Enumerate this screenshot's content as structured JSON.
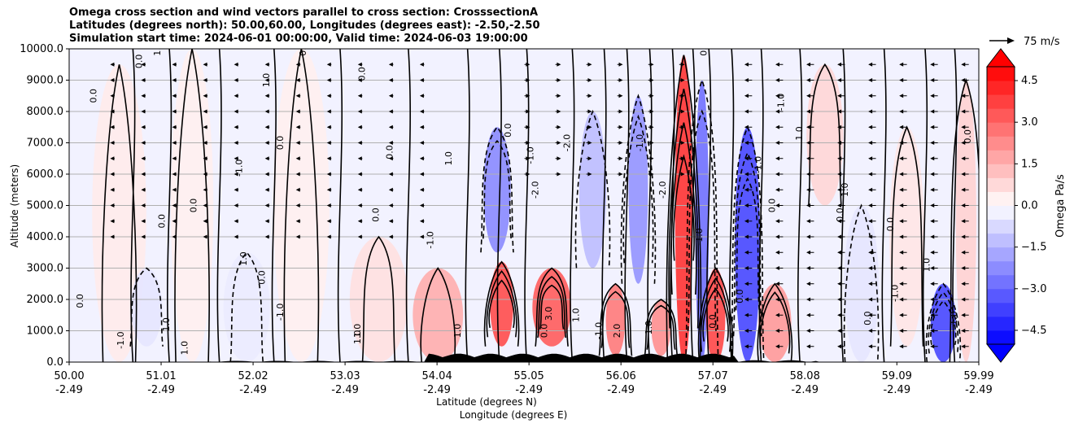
{
  "title_lines": [
    "Omega cross section and wind vectors parallel to cross section: CrosssectionA",
    "Latitudes (degrees north): 50.00,60.00, Longitudes (degrees east): -2.50,-2.50",
    "Simulation start time: 2024-06-01 00:00:00, Valid time: 2024-06-03 19:00:00"
  ],
  "chart_data": {
    "type": "heatmap",
    "title": "Omega cross section and wind vectors parallel to cross section: CrosssectionA",
    "ylabel": "Altitude (meters)",
    "xlabel_lines": [
      "Latitude (degrees N)",
      "Longitude (degrees E)"
    ],
    "ylim": [
      0,
      10000
    ],
    "xlim": [
      50.0,
      59.99
    ],
    "y_ticks": [
      0,
      1000,
      2000,
      3000,
      4000,
      5000,
      6000,
      7000,
      8000,
      9000,
      10000
    ],
    "y_tick_labels": [
      "0.0",
      "1000.0",
      "2000.0",
      "3000.0",
      "4000.0",
      "5000.0",
      "6000.0",
      "7000.0",
      "8000.0",
      "9000.0",
      "10000.0"
    ],
    "x_ticks": [
      50.0,
      51.01,
      52.02,
      53.03,
      54.04,
      55.05,
      56.06,
      57.07,
      58.08,
      59.09,
      59.99
    ],
    "x_tick_lat_labels": [
      "50.00",
      "51.01",
      "52.02",
      "53.03",
      "54.04",
      "55.05",
      "56.06",
      "57.07",
      "58.08",
      "59.09",
      "59.99"
    ],
    "x_tick_lon_labels": [
      "-2.49",
      "-2.49",
      "-2.49",
      "-2.49",
      "-2.49",
      "-2.49",
      "-2.49",
      "-2.49",
      "-2.49",
      "-2.49",
      "-2.49"
    ],
    "grid": "horizontal",
    "colorbar": {
      "label": "Omega Pa/s",
      "range": [
        -5.0,
        5.0
      ],
      "step": 0.5,
      "ticks": [
        -4.5,
        -3.0,
        -1.5,
        0.0,
        1.5,
        3.0,
        4.5
      ],
      "tick_labels": [
        "−4.5",
        "−3.0",
        "−1.5",
        "0.0",
        "1.5",
        "3.0",
        "4.5"
      ],
      "colormap": "bwr",
      "extend": "both"
    },
    "omega_cells": [
      {
        "lat": 50.55,
        "alt_min": 0,
        "alt_max": 9500,
        "omega": 0.4
      },
      {
        "lat": 50.85,
        "alt_min": 500,
        "alt_max": 3000,
        "omega": -0.5
      },
      {
        "lat": 51.35,
        "alt_min": 0,
        "alt_max": 10000,
        "omega": 0.3
      },
      {
        "lat": 51.95,
        "alt_min": 0,
        "alt_max": 3500,
        "omega": -0.4
      },
      {
        "lat": 52.55,
        "alt_min": 0,
        "alt_max": 10000,
        "omega": 0.3
      },
      {
        "lat": 53.4,
        "alt_min": 0,
        "alt_max": 4000,
        "omega": 0.6
      },
      {
        "lat": 54.05,
        "alt_min": 0,
        "alt_max": 3000,
        "omega": 1.6
      },
      {
        "lat": 54.7,
        "alt_min": 3500,
        "alt_max": 7500,
        "omega": -2.3
      },
      {
        "lat": 54.75,
        "alt_min": 500,
        "alt_max": 3200,
        "omega": 3.5
      },
      {
        "lat": 55.3,
        "alt_min": 500,
        "alt_max": 3000,
        "omega": 3.2
      },
      {
        "lat": 55.75,
        "alt_min": 3000,
        "alt_max": 8000,
        "omega": -1.3
      },
      {
        "lat": 56.0,
        "alt_min": 200,
        "alt_max": 2500,
        "omega": 2.6
      },
      {
        "lat": 56.25,
        "alt_min": 2500,
        "alt_max": 8500,
        "omega": -2.1
      },
      {
        "lat": 56.5,
        "alt_min": 200,
        "alt_max": 2000,
        "omega": 2.2
      },
      {
        "lat": 56.75,
        "alt_min": 0,
        "alt_max": 9800,
        "omega": 4.0
      },
      {
        "lat": 56.95,
        "alt_min": 0,
        "alt_max": 9000,
        "omega": -2.8
      },
      {
        "lat": 57.1,
        "alt_min": 0,
        "alt_max": 3000,
        "omega": 3.6
      },
      {
        "lat": 57.45,
        "alt_min": 0,
        "alt_max": 7500,
        "omega": -3.6
      },
      {
        "lat": 57.75,
        "alt_min": 0,
        "alt_max": 2500,
        "omega": 2.0
      },
      {
        "lat": 58.3,
        "alt_min": 5000,
        "alt_max": 9500,
        "omega": 0.8
      },
      {
        "lat": 58.7,
        "alt_min": 0,
        "alt_max": 5000,
        "omega": -0.5
      },
      {
        "lat": 59.2,
        "alt_min": 500,
        "alt_max": 7500,
        "omega": 0.5
      },
      {
        "lat": 59.6,
        "alt_min": 0,
        "alt_max": 2500,
        "omega": -3.6
      },
      {
        "lat": 59.85,
        "alt_min": 0,
        "alt_max": 9000,
        "omega": 0.9
      }
    ],
    "contour_labels": [
      {
        "text": "0.0",
        "lat": 50.15,
        "alt": 1950
      },
      {
        "text": "0.0",
        "lat": 50.3,
        "alt": 8500
      },
      {
        "text": "1.0",
        "lat": 51.0,
        "alt": 10000
      },
      {
        "text": "0.0",
        "lat": 50.8,
        "alt": 9600
      },
      {
        "text": "-1.0",
        "lat": 50.6,
        "alt": 700
      },
      {
        "text": "1.0",
        "lat": 51.3,
        "alt": 450
      },
      {
        "text": "1.0",
        "lat": 51.1,
        "alt": 1200
      },
      {
        "text": "0.0",
        "lat": 51.05,
        "alt": 4500
      },
      {
        "text": "0.0",
        "lat": 51.4,
        "alt": 5000
      },
      {
        "text": "-1.0",
        "lat": 51.9,
        "alt": 6200
      },
      {
        "text": "1.0",
        "lat": 51.95,
        "alt": 3300
      },
      {
        "text": "0.0",
        "lat": 52.15,
        "alt": 2700
      },
      {
        "text": "1.0",
        "lat": 52.2,
        "alt": 9000
      },
      {
        "text": "0.0",
        "lat": 52.6,
        "alt": 10000
      },
      {
        "text": "0.0",
        "lat": 52.35,
        "alt": 7000
      },
      {
        "text": "-1.0",
        "lat": 52.35,
        "alt": 1600
      },
      {
        "text": "1.0",
        "lat": 53.2,
        "alt": 800
      },
      {
        "text": "0.0",
        "lat": 53.25,
        "alt": 9200
      },
      {
        "text": "0.0",
        "lat": 53.4,
        "alt": 4700
      },
      {
        "text": "0.0",
        "lat": 53.55,
        "alt": 6700
      },
      {
        "text": "1.0",
        "lat": 54.2,
        "alt": 6500
      },
      {
        "text": "-1.0",
        "lat": 54.0,
        "alt": 3900
      },
      {
        "text": "1.0",
        "lat": 54.3,
        "alt": 1000
      },
      {
        "text": "0.0",
        "lat": 54.85,
        "alt": 7400
      },
      {
        "text": "0.0",
        "lat": 55.25,
        "alt": 1000
      },
      {
        "text": "-2.0",
        "lat": 55.15,
        "alt": 5500
      },
      {
        "text": "-1.0",
        "lat": 55.1,
        "alt": 6600
      },
      {
        "text": "-2.0",
        "lat": 55.5,
        "alt": 7000
      },
      {
        "text": "1.0",
        "lat": 55.6,
        "alt": 1500
      },
      {
        "text": "3.0",
        "lat": 55.3,
        "alt": 1550
      },
      {
        "text": "-1.0",
        "lat": 55.85,
        "alt": 1000
      },
      {
        "text": "2.0",
        "lat": 56.05,
        "alt": 1000
      },
      {
        "text": "1.0",
        "lat": 56.4,
        "alt": 1100
      },
      {
        "text": "-1.0",
        "lat": 56.3,
        "alt": 7000
      },
      {
        "text": "-2.0",
        "lat": 56.55,
        "alt": 5500
      },
      {
        "text": "0.0",
        "lat": 57.0,
        "alt": 10000
      },
      {
        "text": "-1.0",
        "lat": 56.95,
        "alt": 4000
      },
      {
        "text": "0.0",
        "lat": 57.1,
        "alt": 1300
      },
      {
        "text": "-1.0",
        "lat": 57.6,
        "alt": 6300
      },
      {
        "text": "0.0",
        "lat": 57.75,
        "alt": 5000
      },
      {
        "text": "-1.0",
        "lat": 57.85,
        "alt": 8300
      },
      {
        "text": "1.0",
        "lat": 58.05,
        "alt": 7300
      },
      {
        "text": "1.0",
        "lat": 58.55,
        "alt": 5500
      },
      {
        "text": "0.0",
        "lat": 58.5,
        "alt": 4700
      },
      {
        "text": "0.0",
        "lat": 59.05,
        "alt": 4400
      },
      {
        "text": "1.0",
        "lat": 59.45,
        "alt": 3100
      },
      {
        "text": "-1.0",
        "lat": 59.1,
        "alt": 2200
      },
      {
        "text": "1.0",
        "lat": 59.75,
        "alt": 1400
      },
      {
        "text": "0.0",
        "lat": 59.9,
        "alt": 7200
      },
      {
        "text": "0.0",
        "lat": 58.8,
        "alt": 1400
      },
      {
        "text": "1.0",
        "lat": 53.2,
        "alt": 1000
      },
      {
        "text": "0.0",
        "lat": 57.4,
        "alt": 2100
      }
    ],
    "wind_vectors": [
      {
        "lat_start": 55.0,
        "lat_end": 57.0,
        "alt_min": 6000,
        "alt_max": 9500,
        "u_ms": 12
      },
      {
        "lat_start": 57.5,
        "lat_end": 60.0,
        "alt_min": 500,
        "alt_max": 9500,
        "u_ms": -20
      },
      {
        "lat_start": 50.5,
        "lat_end": 54.0,
        "alt_min": 4000,
        "alt_max": 9500,
        "u_ms": -8
      }
    ],
    "reference_vector": {
      "label": "75 m/s",
      "value": 75
    }
  }
}
